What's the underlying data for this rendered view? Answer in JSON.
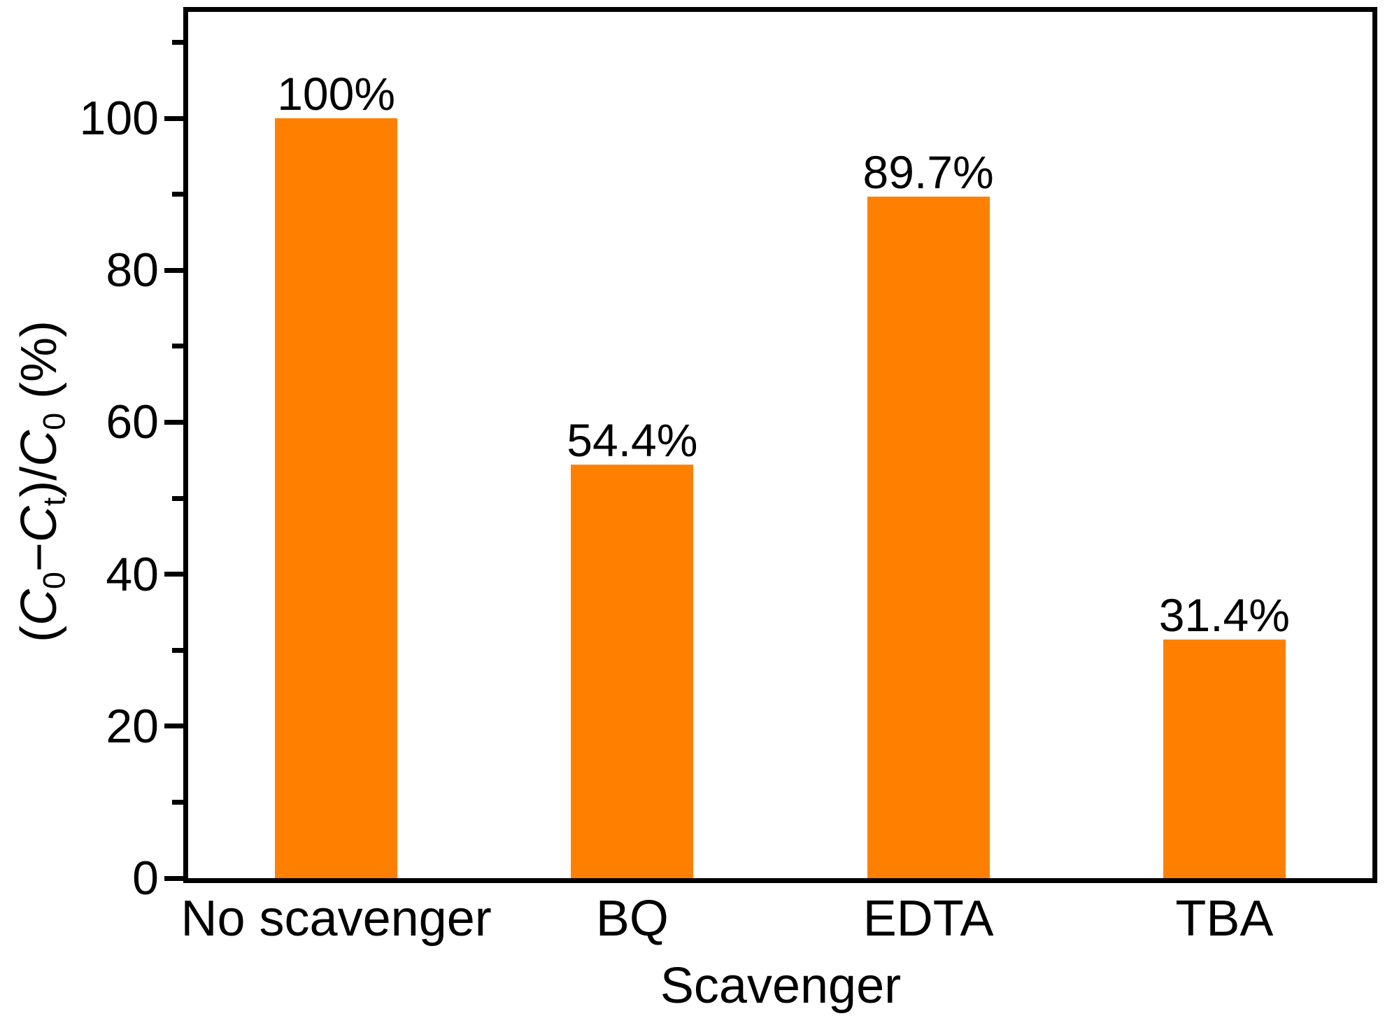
{
  "chart_data": {
    "type": "bar",
    "title": "",
    "categories": [
      "No scavenger",
      "BQ",
      "EDTA",
      "TBA"
    ],
    "values": [
      100,
      54.4,
      89.7,
      31.4
    ],
    "bar_labels": [
      "100%",
      "54.4%",
      "89.7%",
      "31.4%"
    ],
    "xlabel": "Scavenger",
    "ylabel": "(C0−Ct)/C0 (%)",
    "ylabel_parts": [
      {
        "text": "(",
        "style": "plain"
      },
      {
        "text": "C",
        "style": "italic"
      },
      {
        "text": "0",
        "style": "sub"
      },
      {
        "text": "−",
        "style": "plain"
      },
      {
        "text": "C",
        "style": "italic"
      },
      {
        "text": "t",
        "style": "sub"
      },
      {
        "text": ")/",
        "style": "plain"
      },
      {
        "text": "C",
        "style": "italic"
      },
      {
        "text": "0",
        "style": "sub"
      },
      {
        "text": " (%)",
        "style": "plain"
      }
    ],
    "ylim": [
      0,
      114
    ],
    "yticks_major": [
      0,
      20,
      40,
      60,
      80,
      100
    ],
    "yticks_minor": [
      10,
      30,
      50,
      70,
      90,
      110
    ],
    "legend": null,
    "grid": false,
    "colors": {
      "bar_fill": "#FF8000",
      "axis": "#000000",
      "background": "#FFFFFF",
      "text": "#000000"
    }
  }
}
